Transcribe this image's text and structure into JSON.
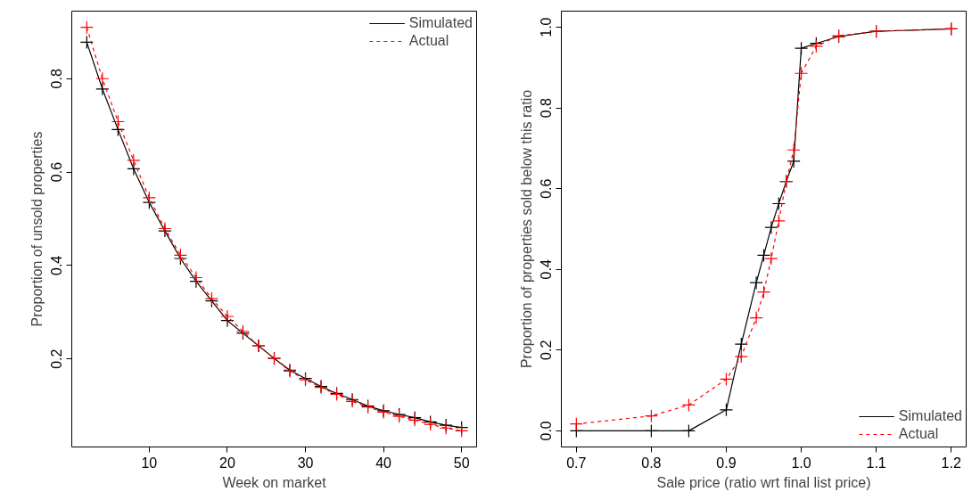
{
  "chart_data": [
    {
      "type": "line",
      "xlabel": "Week on market",
      "ylabel": "Proportion of unsold properties",
      "x": [
        2,
        4,
        6,
        8,
        10,
        12,
        14,
        16,
        18,
        20,
        22,
        24,
        26,
        28,
        30,
        32,
        34,
        36,
        38,
        40,
        42,
        44,
        46,
        48,
        50
      ],
      "series": [
        {
          "name": "Simulated",
          "color": "#000000",
          "line_style": "solid",
          "values": [
            0.878,
            0.778,
            0.691,
            0.607,
            0.535,
            0.474,
            0.415,
            0.366,
            0.324,
            0.282,
            0.255,
            0.228,
            0.201,
            0.176,
            0.158,
            0.141,
            0.126,
            0.113,
            0.099,
            0.089,
            0.081,
            0.074,
            0.065,
            0.058,
            0.053
          ]
        },
        {
          "name": "Actual",
          "color": "#ff0000",
          "line_style": "dashed",
          "values": [
            0.91,
            0.8,
            0.708,
            0.625,
            0.545,
            0.479,
            0.422,
            0.374,
            0.329,
            0.291,
            0.259,
            0.228,
            0.201,
            0.174,
            0.155,
            0.139,
            0.124,
            0.109,
            0.097,
            0.086,
            0.077,
            0.069,
            0.06,
            0.052,
            0.046
          ]
        }
      ],
      "xlim": [
        0.08,
        51.92
      ],
      "ylim": [
        0.0114,
        0.9446
      ],
      "xticks": [
        10,
        20,
        30,
        40,
        50
      ],
      "yticks": [
        0.2,
        0.4,
        0.6,
        0.8
      ],
      "marker": "cross",
      "grid": false,
      "legend": "top right"
    },
    {
      "type": "line",
      "xlabel": "Sale price (ratio wrt final list price)",
      "ylabel": "Proportion of properties sold below this ratio",
      "x": [
        0.7,
        0.8,
        0.85,
        0.9,
        0.92,
        0.94,
        0.95,
        0.96,
        0.97,
        0.98,
        0.99,
        1.0,
        1.02,
        1.05,
        1.1,
        1.2
      ],
      "series": [
        {
          "name": "Simulated",
          "color": "#000000",
          "line_style": "solid",
          "values": [
            0,
            0,
            0,
            0.052,
            0.215,
            0.367,
            0.435,
            0.504,
            0.563,
            0.618,
            0.668,
            0.948,
            0.96,
            0.977,
            0.99,
            0.996
          ]
        },
        {
          "name": "Actual",
          "color": "#ff0000",
          "line_style": "dashed",
          "values": [
            0.017,
            0.037,
            0.064,
            0.128,
            0.184,
            0.28,
            0.344,
            0.427,
            0.52,
            0.618,
            0.696,
            0.886,
            0.953,
            0.979,
            0.99,
            0.996
          ]
        }
      ],
      "xlim": [
        0.68,
        1.22
      ],
      "ylim": [
        -0.04,
        1.04
      ],
      "xticks": [
        0.7,
        0.8,
        0.9,
        {
          "value": 1,
          "label": "1.0"
        },
        1.1,
        1.2
      ],
      "yticks": [
        {
          "value": 0,
          "label": "0.0"
        },
        0.2,
        0.4,
        0.6,
        0.8,
        {
          "value": 1,
          "label": "1.0"
        }
      ],
      "marker": "cross",
      "grid": false,
      "legend": "bottom right"
    }
  ]
}
